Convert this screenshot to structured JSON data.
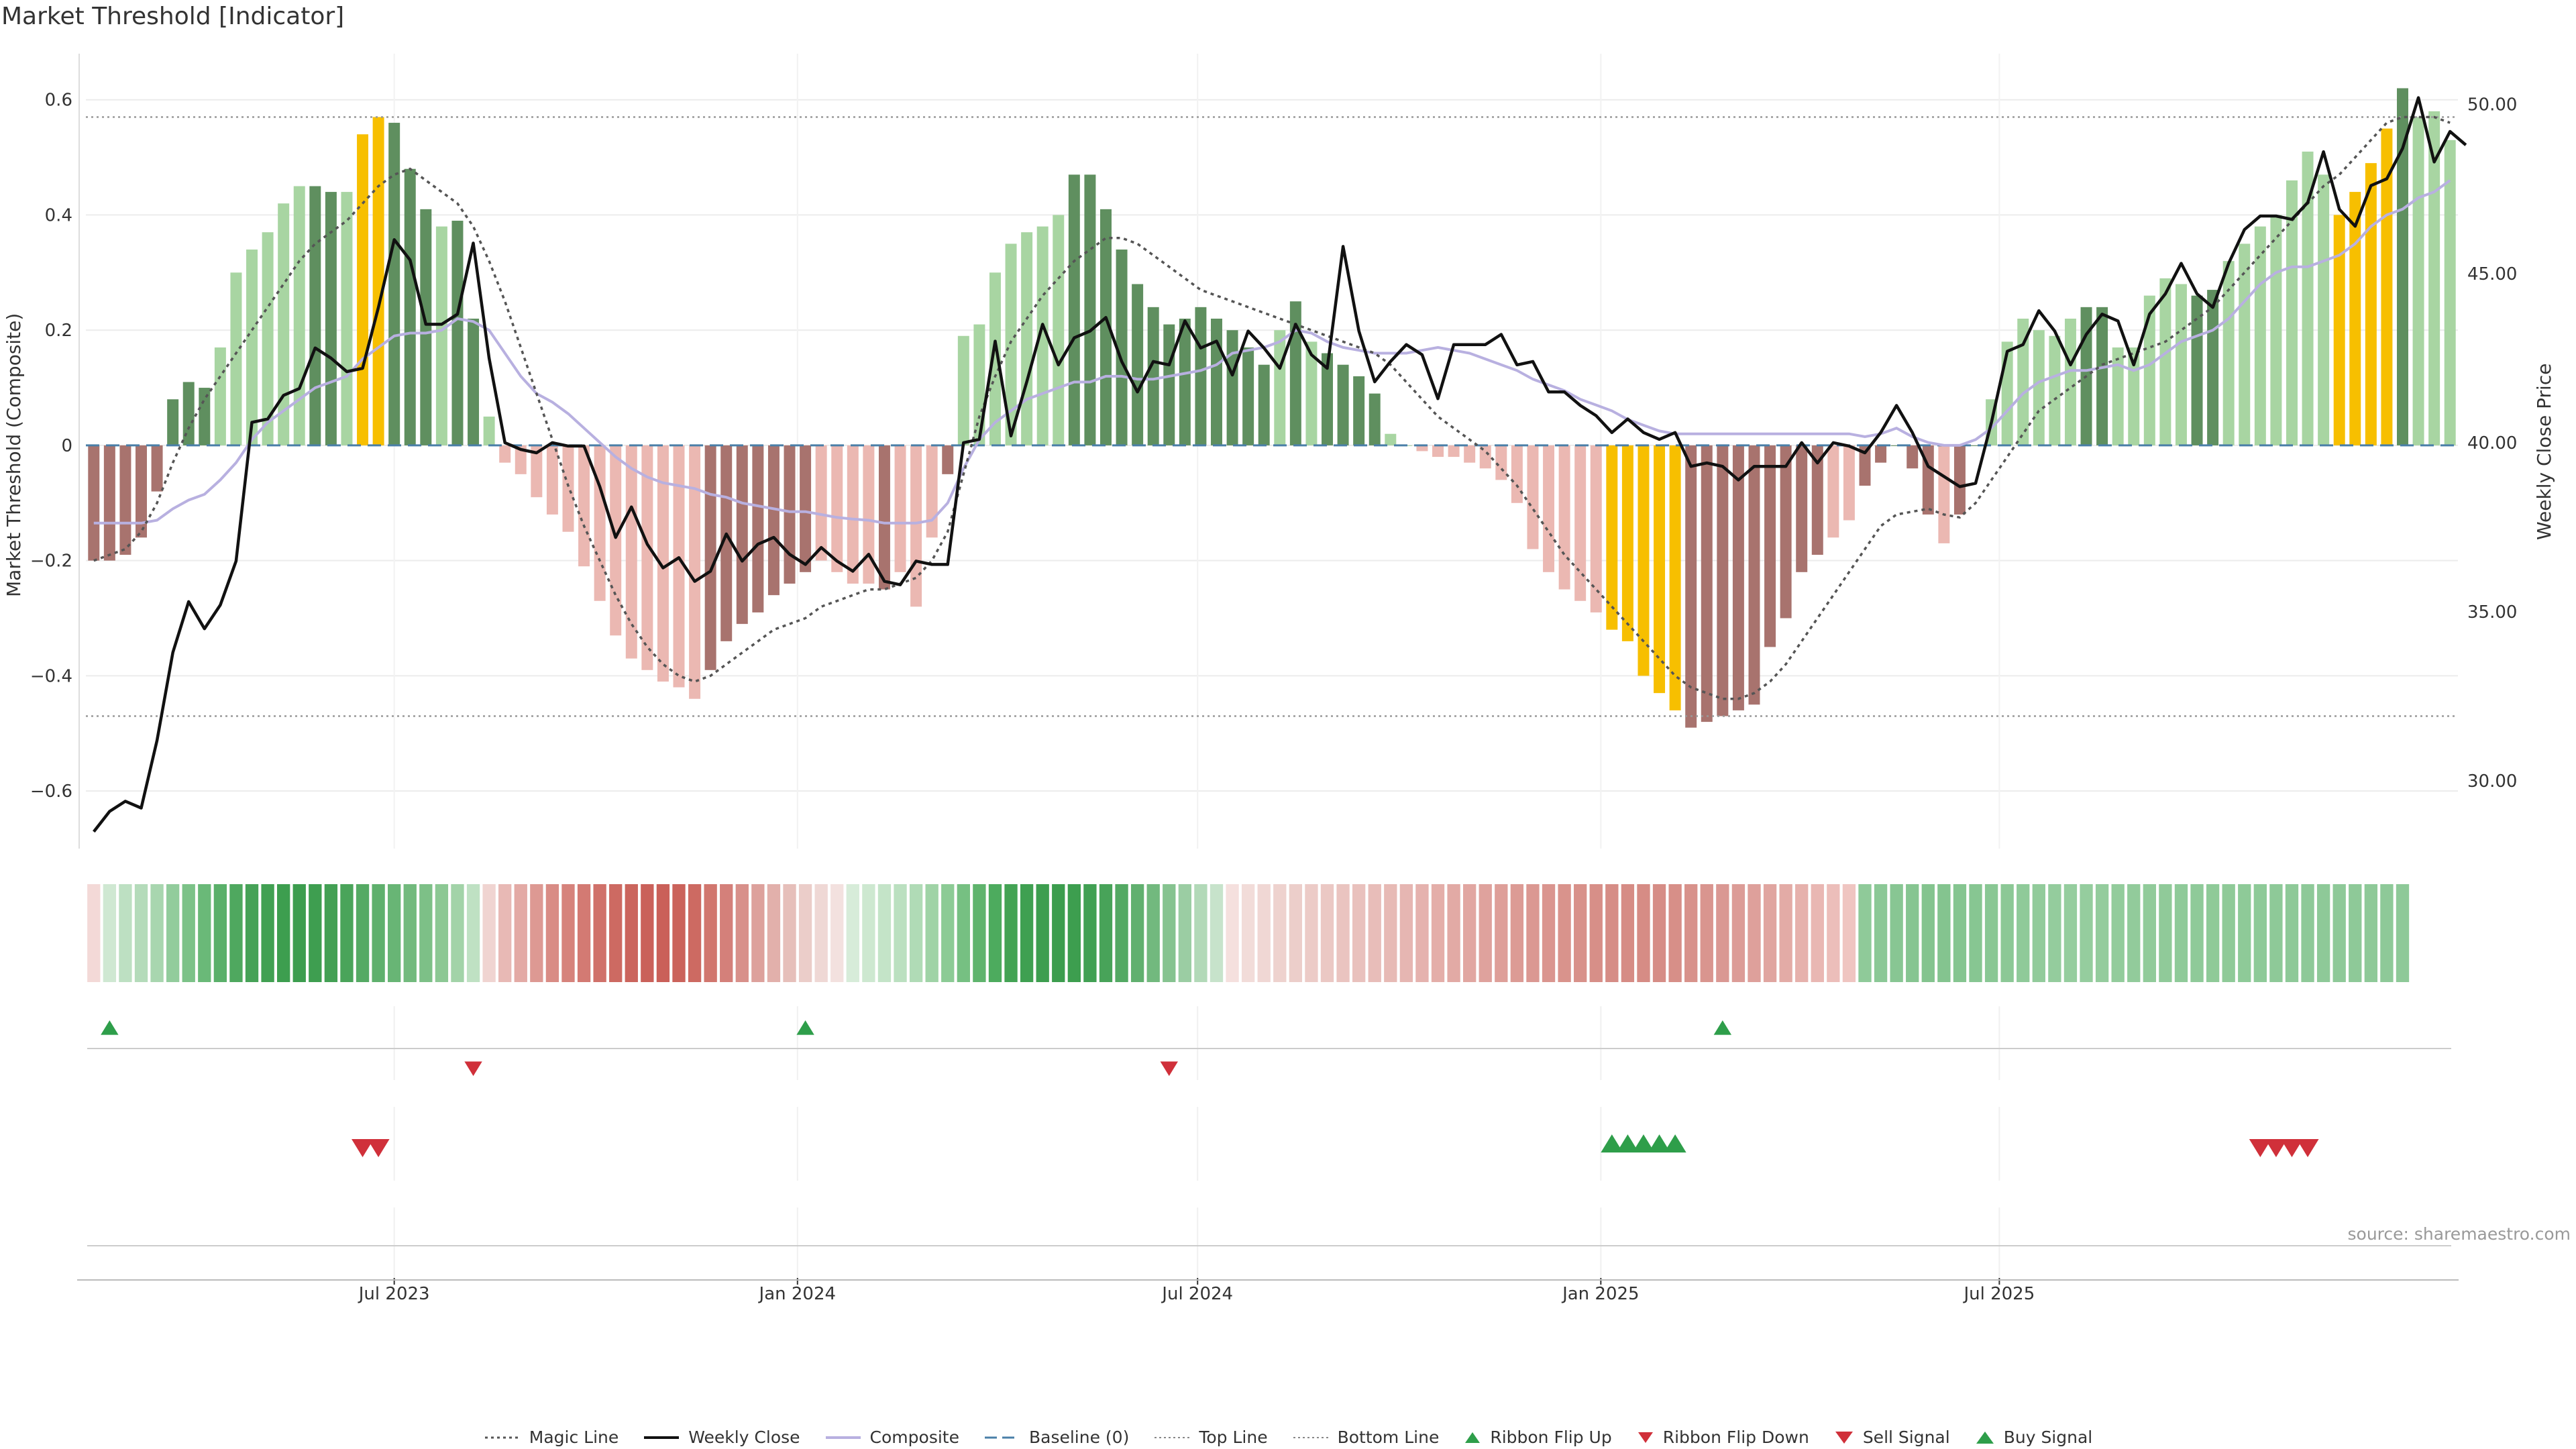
{
  "title": "Market Threshold [Indicator]",
  "source": "source: sharemaestro.com",
  "colors": {
    "strong_green": "#5f8f5f",
    "light_green": "#a8d5a2",
    "strong_red": "#a8736e",
    "light_red": "#ebb8b2",
    "gold": "#f7bf00",
    "composite": "#b8b0e0",
    "close": "#111111",
    "magic": "#555555",
    "baseline": "#4a7fa8",
    "flip_up": "#2e9e4a",
    "flip_down": "#d0303a"
  },
  "chart_data": {
    "type": "bar",
    "y_left": {
      "label": "Market Threshold (Composite)",
      "ylim": [
        -0.7,
        0.68
      ],
      "ticks": [
        -0.6,
        -0.4,
        -0.2,
        0,
        0.2,
        0.4,
        0.6
      ]
    },
    "y_right": {
      "label": "Weekly Close Price",
      "ylim": [
        28.0,
        51.5
      ],
      "ticks": [
        "30.00",
        "35.00",
        "40.00",
        "45.00",
        "50.00"
      ]
    },
    "x_ticks": [
      "Jul 2023",
      "Jan 2024",
      "Jul 2024",
      "Jan 2025",
      "Jul 2025"
    ],
    "x_tick_weeks": [
      19.5,
      45,
      70.3,
      95.8,
      121
    ],
    "top_line": 0.57,
    "bottom_line": -0.47,
    "composite_bars": [
      -0.2,
      -0.2,
      -0.19,
      -0.16,
      -0.08,
      0.08,
      0.11,
      0.1,
      0.17,
      0.3,
      0.34,
      0.37,
      0.42,
      0.45,
      0.45,
      0.44,
      0.44,
      0.54,
      0.57,
      0.56,
      0.48,
      0.41,
      0.38,
      0.39,
      0.22,
      0.05,
      -0.03,
      -0.05,
      -0.09,
      -0.12,
      -0.15,
      -0.21,
      -0.27,
      -0.33,
      -0.37,
      -0.39,
      -0.41,
      -0.42,
      -0.44,
      -0.39,
      -0.34,
      -0.31,
      -0.29,
      -0.26,
      -0.24,
      -0.22,
      -0.2,
      -0.22,
      -0.24,
      -0.24,
      -0.25,
      -0.22,
      -0.28,
      -0.16,
      -0.05,
      0.19,
      0.21,
      0.3,
      0.35,
      0.37,
      0.38,
      0.4,
      0.47,
      0.47,
      0.41,
      0.34,
      0.28,
      0.24,
      0.21,
      0.22,
      0.24,
      0.22,
      0.2,
      0.17,
      0.14,
      0.2,
      0.25,
      0.18,
      0.16,
      0.14,
      0.12,
      0.09,
      0.02,
      0.0,
      -0.01,
      -0.02,
      -0.02,
      -0.03,
      -0.04,
      -0.06,
      -0.1,
      -0.18,
      -0.22,
      -0.25,
      -0.27,
      -0.29,
      -0.32,
      -0.34,
      -0.4,
      -0.43,
      -0.46,
      -0.49,
      -0.48,
      -0.47,
      -0.46,
      -0.45,
      -0.35,
      -0.3,
      -0.22,
      -0.19,
      -0.16,
      -0.13,
      -0.07,
      -0.03,
      0.0,
      -0.04,
      -0.12,
      -0.17,
      -0.12,
      0.0,
      0.08,
      0.18,
      0.22,
      0.2,
      0.19,
      0.22,
      0.24,
      0.24,
      0.17,
      0.17,
      0.26,
      0.29,
      0.28,
      0.26,
      0.27,
      0.32,
      0.35,
      0.38,
      0.4,
      0.46,
      0.51,
      0.47,
      0.4,
      0.44,
      0.49,
      0.55,
      0.62,
      0.57,
      0.58,
      0.53
    ],
    "bar_color_codes": "RRRRRGGGSSSSSSGGSYYGGGSGGSSSSSSSSSSSSSSRRRRRRRSSSSRSSSGSSSSSSSGGGGGGGGGGGGGSGSGGGGSSSSSSSSSSSSSSYYYYYRRRRRRRRRSSRGGGGSGGSSSSSSGGSSSSSGGSSSSSSSYYYYG",
    "weekly_close": [
      28.5,
      29.1,
      29.4,
      29.2,
      31.2,
      33.8,
      35.3,
      34.5,
      35.2,
      36.5,
      40.6,
      40.7,
      41.4,
      41.6,
      42.8,
      42.5,
      42.1,
      42.2,
      44.0,
      46.0,
      45.4,
      43.5,
      43.5,
      43.8,
      45.9,
      42.5,
      40.0,
      39.8,
      39.7,
      40.0,
      39.9,
      39.9,
      38.7,
      37.2,
      38.1,
      37.0,
      36.3,
      36.6,
      35.9,
      36.2,
      37.3,
      36.5,
      37.0,
      37.2,
      36.7,
      36.4,
      36.9,
      36.5,
      36.2,
      36.7,
      35.9,
      35.8,
      36.5,
      36.4,
      36.4,
      40.0,
      40.1,
      43.0,
      40.2,
      41.8,
      43.5,
      42.3,
      43.1,
      43.3,
      43.7,
      42.4,
      41.5,
      42.4,
      42.3,
      43.6,
      42.8,
      43.0,
      42.0,
      43.3,
      42.8,
      42.2,
      43.5,
      42.6,
      42.2,
      45.8,
      43.3,
      41.8,
      42.4,
      42.9,
      42.6,
      41.3,
      42.9,
      42.9,
      42.9,
      43.2,
      42.3,
      42.4,
      41.5,
      41.5,
      41.1,
      40.8,
      40.3,
      40.7,
      40.3,
      40.1,
      40.3,
      39.3,
      39.4,
      39.3,
      38.9,
      39.3,
      39.3,
      39.3,
      40.0,
      39.4,
      40.0,
      39.9,
      39.7,
      40.3,
      41.1,
      40.3,
      39.3,
      39.0,
      38.7,
      38.8,
      40.6,
      42.7,
      42.9,
      43.9,
      43.3,
      42.3,
      43.2,
      43.8,
      43.6,
      42.3,
      43.8,
      44.4,
      45.3,
      44.4,
      44.0,
      45.3,
      46.3,
      46.7,
      46.7,
      46.6,
      47.1,
      48.6,
      46.9,
      46.4,
      47.6,
      47.8,
      48.7,
      50.2,
      48.3,
      49.2,
      48.8
    ],
    "composite_line": [
      -0.135,
      -0.135,
      -0.135,
      -0.135,
      -0.13,
      -0.11,
      -0.095,
      -0.085,
      -0.06,
      -0.03,
      0.01,
      0.04,
      0.06,
      0.08,
      0.1,
      0.11,
      0.12,
      0.15,
      0.17,
      0.19,
      0.195,
      0.195,
      0.2,
      0.22,
      0.215,
      0.2,
      0.16,
      0.12,
      0.09,
      0.075,
      0.055,
      0.03,
      0.005,
      -0.02,
      -0.04,
      -0.055,
      -0.065,
      -0.07,
      -0.075,
      -0.085,
      -0.09,
      -0.1,
      -0.105,
      -0.11,
      -0.115,
      -0.115,
      -0.12,
      -0.125,
      -0.128,
      -0.13,
      -0.135,
      -0.135,
      -0.135,
      -0.13,
      -0.1,
      -0.04,
      0.01,
      0.04,
      0.06,
      0.08,
      0.09,
      0.1,
      0.11,
      0.11,
      0.12,
      0.12,
      0.115,
      0.115,
      0.12,
      0.125,
      0.13,
      0.14,
      0.16,
      0.165,
      0.17,
      0.18,
      0.2,
      0.195,
      0.18,
      0.17,
      0.165,
      0.16,
      0.16,
      0.16,
      0.165,
      0.17,
      0.165,
      0.16,
      0.15,
      0.14,
      0.13,
      0.115,
      0.105,
      0.095,
      0.08,
      0.07,
      0.06,
      0.045,
      0.035,
      0.025,
      0.02,
      0.02,
      0.02,
      0.02,
      0.02,
      0.02,
      0.02,
      0.02,
      0.02,
      0.02,
      0.02,
      0.02,
      0.015,
      0.02,
      0.03,
      0.015,
      0.005,
      0.0,
      0.0,
      0.01,
      0.03,
      0.06,
      0.09,
      0.11,
      0.12,
      0.13,
      0.13,
      0.135,
      0.14,
      0.13,
      0.14,
      0.16,
      0.18,
      0.19,
      0.2,
      0.22,
      0.25,
      0.28,
      0.3,
      0.31,
      0.31,
      0.32,
      0.33,
      0.35,
      0.38,
      0.4,
      0.41,
      0.43,
      0.44,
      0.46
    ],
    "magic_line": [
      -0.2,
      -0.19,
      -0.18,
      -0.15,
      -0.1,
      -0.03,
      0.03,
      0.08,
      0.12,
      0.16,
      0.2,
      0.24,
      0.28,
      0.32,
      0.35,
      0.37,
      0.39,
      0.42,
      0.45,
      0.47,
      0.48,
      0.46,
      0.44,
      0.42,
      0.38,
      0.32,
      0.25,
      0.17,
      0.09,
      0.01,
      -0.07,
      -0.14,
      -0.2,
      -0.26,
      -0.31,
      -0.35,
      -0.38,
      -0.4,
      -0.41,
      -0.4,
      -0.38,
      -0.36,
      -0.34,
      -0.32,
      -0.31,
      -0.3,
      -0.28,
      -0.27,
      -0.26,
      -0.25,
      -0.25,
      -0.24,
      -0.23,
      -0.2,
      -0.15,
      -0.05,
      0.05,
      0.12,
      0.18,
      0.22,
      0.26,
      0.29,
      0.32,
      0.34,
      0.36,
      0.36,
      0.35,
      0.33,
      0.31,
      0.29,
      0.27,
      0.26,
      0.25,
      0.24,
      0.23,
      0.22,
      0.21,
      0.2,
      0.19,
      0.18,
      0.17,
      0.16,
      0.14,
      0.11,
      0.08,
      0.05,
      0.03,
      0.01,
      -0.01,
      -0.04,
      -0.07,
      -0.11,
      -0.15,
      -0.19,
      -0.22,
      -0.25,
      -0.28,
      -0.31,
      -0.34,
      -0.37,
      -0.4,
      -0.42,
      -0.43,
      -0.44,
      -0.44,
      -0.43,
      -0.41,
      -0.38,
      -0.34,
      -0.3,
      -0.26,
      -0.22,
      -0.18,
      -0.14,
      -0.12,
      -0.115,
      -0.11,
      -0.12,
      -0.125,
      -0.1,
      -0.06,
      -0.02,
      0.02,
      0.06,
      0.08,
      0.1,
      0.12,
      0.14,
      0.15,
      0.16,
      0.17,
      0.18,
      0.2,
      0.22,
      0.24,
      0.27,
      0.3,
      0.33,
      0.36,
      0.39,
      0.42,
      0.45,
      0.47,
      0.5,
      0.53,
      0.56,
      0.57,
      0.57,
      0.57,
      0.56
    ],
    "ribbon_colors": [
      "#f3d9d7",
      "#cfe8d2",
      "#bde0c2",
      "#b4dbba",
      "#a8d6af",
      "#92cc9c",
      "#7cc288",
      "#6ab978",
      "#5ab06a",
      "#4fa85f",
      "#46a257",
      "#41a052",
      "#3d9e4f",
      "#3c9d4e",
      "#3e9e50",
      "#43a054",
      "#4aa45a",
      "#55aa64",
      "#5fb06d",
      "#68b575",
      "#72ba7d",
      "#7dc087",
      "#8cc894",
      "#a2d3a8",
      "#bfe1c3",
      "#f0d4d1",
      "#e8b9b5",
      "#e3aaa5",
      "#dd9993",
      "#d98c85",
      "#d6837c",
      "#d37a73",
      "#d0716a",
      "#cd6a62",
      "#cb655d",
      "#ca615a",
      "#ca6059",
      "#cb635b",
      "#cd6a62",
      "#d1766e",
      "#d4807a",
      "#d8908a",
      "#dda19c",
      "#e2b0ab",
      "#e6bfba",
      "#ebcdc9",
      "#efd8d5",
      "#f3e1df",
      "#d7ecd9",
      "#cde8d0",
      "#c4e4c8",
      "#bbe0c0",
      "#b0dbb6",
      "#9fd3a6",
      "#8ccb95",
      "#76c082",
      "#5fb46d",
      "#4dab5e",
      "#43a354",
      "#3fa051",
      "#3d9e4f",
      "#3c9d4e",
      "#3d9e4f",
      "#41a053",
      "#48a359",
      "#53a963",
      "#61b06f",
      "#72b97e",
      "#86c390",
      "#9bcda3",
      "#b2d9b8",
      "#c7e3cb",
      "#f5e0de",
      "#f2dcd9",
      "#f0d7d4",
      "#eed2ce",
      "#ecceca",
      "#eccbc7",
      "#ebc8c4",
      "#eac4c0",
      "#e9c1bd",
      "#e8bdb9",
      "#e7bab5",
      "#e6b6b2",
      "#e5b2ae",
      "#e4aea9",
      "#e2aaa5",
      "#e1a6a1",
      "#dfa29d",
      "#de9f99",
      "#dc9b95",
      "#db9892",
      "#da958f",
      "#d9938c",
      "#d8918a",
      "#d78f88",
      "#d68d86",
      "#d68c85",
      "#d68c85",
      "#d68d86",
      "#d78f88",
      "#d8928b",
      "#d9958f",
      "#da9893",
      "#dc9c97",
      "#dea09b",
      "#e0a5a0",
      "#e3aba6",
      "#e6b1ac",
      "#e9b7b3",
      "#ecbeba",
      "#efc5c1",
      "#8fca99",
      "#8bc896",
      "#88c693",
      "#86c591",
      "#84c48f",
      "#84c48f",
      "#85c590",
      "#87c692",
      "#89c794",
      "#8cc896",
      "#8fca99",
      "#92cb9b",
      "#94cc9d",
      "#95cd9e",
      "#95cd9e",
      "#94cc9d",
      "#93cc9c",
      "#92cb9b",
      "#91cb9a",
      "#90ca99",
      "#8fca99",
      "#8fca99",
      "#8fca98",
      "#8fca98",
      "#8eca98",
      "#8eca98",
      "#8ec998",
      "#8ec998",
      "#8ec998",
      "#8ec998",
      "#8ec998",
      "#8ec998",
      "#8ec998",
      "#8ec998",
      "#8ec998"
    ],
    "signals": {
      "ribbon_flip_up": [
        1,
        45,
        103
      ],
      "ribbon_flip_down": [
        24,
        68
      ],
      "sell": [
        17,
        18,
        137,
        138,
        139,
        140
      ],
      "buy": [
        96,
        97,
        98,
        99,
        100
      ]
    },
    "legend": [
      "Magic Line",
      "Weekly Close",
      "Composite",
      "Baseline (0)",
      "Top Line",
      "Bottom Line",
      "Ribbon Flip Up",
      "Ribbon Flip Down",
      "Sell Signal",
      "Buy Signal"
    ]
  }
}
